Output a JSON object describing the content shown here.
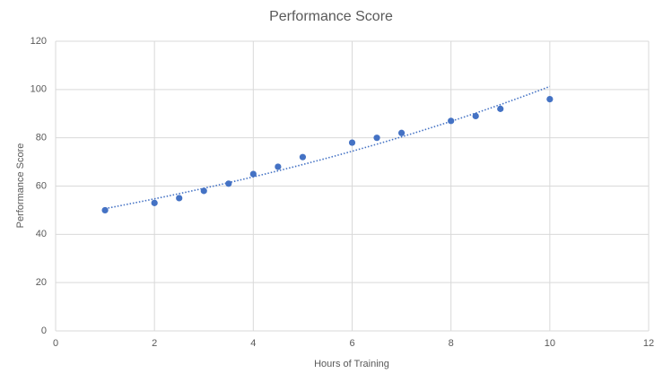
{
  "chart_data": {
    "type": "scatter",
    "title": "Performance Score",
    "x_label": "Hours of Training",
    "y_label": "Performance Score",
    "x": [
      1,
      2,
      2.5,
      3,
      3.5,
      4,
      4.5,
      5,
      6,
      6.5,
      7,
      8,
      8.5,
      9,
      10
    ],
    "values": [
      50,
      53,
      55,
      58,
      61,
      65,
      68,
      72,
      78,
      80,
      82,
      87,
      89,
      92,
      96
    ],
    "color": "#4472c4",
    "trendline": "exponential",
    "xlim": [
      0,
      12
    ],
    "xticks": [
      0,
      2,
      4,
      6,
      8,
      10,
      12
    ],
    "ylim": [
      0,
      120
    ],
    "yticks": [
      0,
      20,
      40,
      60,
      80,
      100,
      120
    ],
    "grid": true
  }
}
